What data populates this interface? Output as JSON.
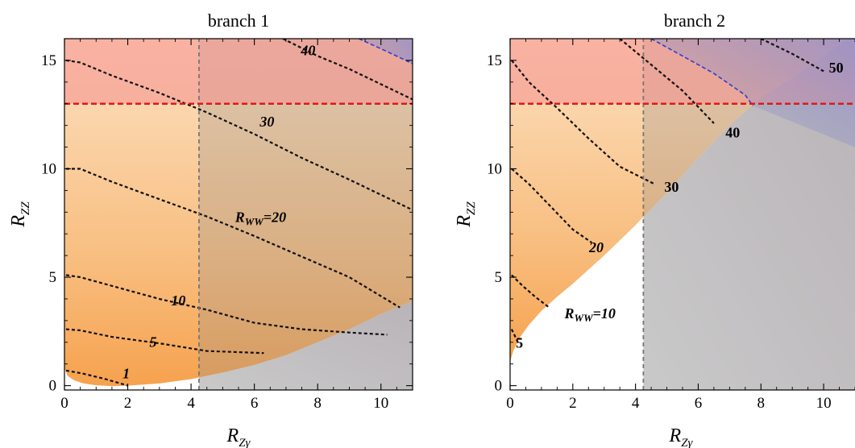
{
  "chart_data": [
    {
      "type": "contour",
      "title": "branch 1",
      "xlabel": "R_Zγ",
      "xlabel_parts": {
        "main": "R",
        "sub": "Zγ"
      },
      "ylabel": "R_ZZ",
      "ylabel_parts": {
        "main": "R",
        "sub": "ZZ"
      },
      "xlim": [
        0,
        11
      ],
      "ylim": [
        -0.2,
        16
      ],
      "xticks": [
        0,
        2,
        4,
        6,
        8,
        10
      ],
      "yticks": [
        0,
        5,
        10,
        15
      ],
      "xtick_labels": [
        "0",
        "2",
        "4",
        "6",
        "8",
        "10"
      ],
      "ytick_labels": [
        "0",
        "5",
        "10",
        "15"
      ],
      "excluded_vertical_line": 4.25,
      "excluded_horizontal_line": 13.0,
      "region_boundary": {
        "x": [
          0,
          0.1,
          0.3,
          0.6,
          1.0,
          1.5,
          2,
          3,
          4,
          5,
          6,
          7,
          8,
          9,
          10,
          11
        ],
        "y": [
          0.8,
          0.45,
          0.25,
          0.1,
          0.02,
          -0.02,
          0.0,
          0.1,
          0.3,
          0.6,
          0.95,
          1.4,
          2.0,
          2.6,
          3.3,
          3.9
        ]
      },
      "contours": [
        {
          "label": "1",
          "x": [
            0.05,
            0.6,
            1.3,
            2.0
          ],
          "y": [
            0.7,
            0.55,
            0.3,
            0.0
          ],
          "label_at": [
            1.95,
            0.5
          ]
        },
        {
          "label": "5",
          "x": [
            0.05,
            0.5,
            1.5,
            3.0,
            4.5,
            6.3
          ],
          "y": [
            2.6,
            2.55,
            2.25,
            1.95,
            1.6,
            1.5
          ],
          "label_at": [
            2.8,
            1.95
          ]
        },
        {
          "label": "10",
          "x": [
            0.05,
            0.5,
            1.5,
            3.0,
            4.5,
            6.0,
            7.5,
            9.0,
            10.2
          ],
          "y": [
            5.1,
            5.0,
            4.6,
            4.0,
            3.5,
            2.9,
            2.6,
            2.45,
            2.35
          ],
          "label_at": [
            3.6,
            3.85
          ]
        },
        {
          "label": "R_WW=20",
          "label_parts": {
            "main": "R",
            "sub": "WW",
            "rest": "=20"
          },
          "x": [
            0.05,
            0.5,
            1.5,
            3.0,
            4.5,
            6.0,
            7.5,
            9.0,
            10.6
          ],
          "y": [
            10.0,
            10.0,
            9.4,
            8.6,
            7.8,
            6.9,
            5.95,
            5.0,
            3.6
          ],
          "label_at": [
            6.2,
            7.7
          ]
        },
        {
          "label": "30",
          "x": [
            0.05,
            0.5,
            1.5,
            3.0,
            4.5,
            6.0,
            7.5,
            9.0,
            11.0
          ],
          "y": [
            15.0,
            14.9,
            14.3,
            13.5,
            12.6,
            11.6,
            10.5,
            9.5,
            8.1
          ],
          "label_at": [
            6.4,
            12.1
          ]
        },
        {
          "label": "40",
          "x": [
            6.9,
            8.0,
            9.0,
            10.0,
            11.0
          ],
          "y": [
            16.0,
            15.2,
            14.6,
            13.9,
            13.2
          ],
          "label_at": [
            7.7,
            15.4
          ]
        },
        {
          "label": "",
          "style": "blue",
          "x": [
            9.3,
            10.2,
            11.0
          ],
          "y": [
            16.0,
            15.4,
            14.85
          ]
        }
      ]
    },
    {
      "type": "contour",
      "title": "branch 2",
      "xlabel": "R_Zγ",
      "xlabel_parts": {
        "main": "R",
        "sub": "Zγ"
      },
      "ylabel": "R_ZZ",
      "ylabel_parts": {
        "main": "R",
        "sub": "ZZ"
      },
      "xlim": [
        0,
        11
      ],
      "ylim": [
        -0.2,
        16
      ],
      "xticks": [
        0,
        2,
        4,
        6,
        8,
        10
      ],
      "yticks": [
        0,
        5,
        10,
        15
      ],
      "xtick_labels": [
        "0",
        "2",
        "4",
        "6",
        "8",
        "10"
      ],
      "ytick_labels": [
        "0",
        "5",
        "10",
        "15"
      ],
      "excluded_vertical_line": 4.25,
      "excluded_horizontal_line": 13.0,
      "region_boundary": {
        "x": [
          0,
          0.1,
          0.3,
          0.6,
          1.0,
          1.5,
          2,
          3,
          4,
          5,
          6,
          7,
          8,
          9,
          10,
          11
        ],
        "y": [
          1.1,
          1.6,
          2.2,
          2.8,
          3.45,
          4.1,
          4.7,
          6.0,
          7.4,
          8.9,
          10.5,
          12.0,
          13.3,
          14.2,
          15.2,
          16.2
        ]
      },
      "contours": [
        {
          "label": "5",
          "x": [
            0.05,
            0.25
          ],
          "y": [
            2.6,
            2.0
          ],
          "label_at": [
            0.3,
            1.9
          ]
        },
        {
          "label": "R_WW=10",
          "label_parts": {
            "main": "R",
            "sub": "WW",
            "rest": "=10"
          },
          "x": [
            0.05,
            0.4,
            0.8,
            1.25
          ],
          "y": [
            5.1,
            4.6,
            4.1,
            3.6
          ],
          "label_at": [
            2.55,
            3.25
          ]
        },
        {
          "label": "20",
          "x": [
            0.05,
            0.6,
            1.2,
            2.0,
            2.6
          ],
          "y": [
            10.0,
            9.3,
            8.4,
            7.2,
            6.6
          ],
          "label_at": [
            2.75,
            6.3
          ]
        },
        {
          "label": "30",
          "x": [
            0.05,
            0.6,
            1.5,
            2.5,
            3.5,
            4.6
          ],
          "y": [
            15.0,
            14.0,
            12.8,
            11.4,
            10.1,
            9.3
          ],
          "label_at": [
            5.15,
            9.1
          ]
        },
        {
          "label": "40",
          "x": [
            3.5,
            4.5,
            5.5,
            6.5
          ],
          "y": [
            16.0,
            14.8,
            13.6,
            12.1
          ],
          "label_at": [
            7.1,
            11.6
          ]
        },
        {
          "label": "50",
          "x": [
            8.0,
            9.0,
            10.0
          ],
          "y": [
            16.0,
            15.3,
            14.5
          ],
          "label_at": [
            10.4,
            14.6
          ]
        },
        {
          "label": "",
          "style": "blue",
          "x": [
            4.5,
            5.5,
            6.5,
            7.5,
            7.75
          ],
          "y": [
            16.0,
            15.2,
            14.4,
            13.4,
            12.9
          ]
        }
      ]
    }
  ]
}
